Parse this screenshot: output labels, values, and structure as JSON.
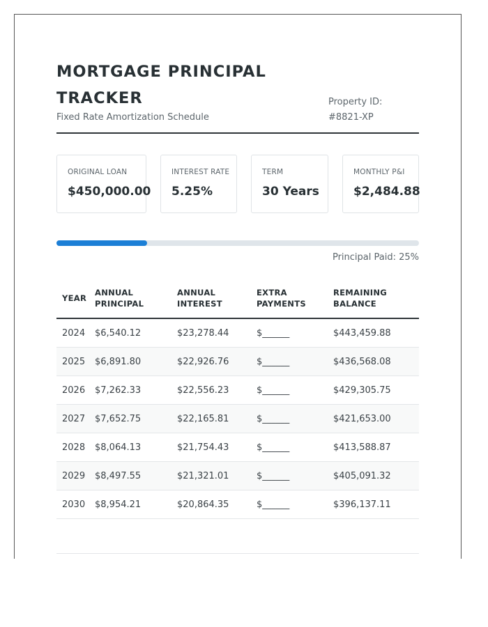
{
  "header": {
    "title": "MORTGAGE PRINCIPAL TRACKER",
    "subtitle": "Fixed Rate Amortization Schedule",
    "property_id": "Property ID: #8821-XP"
  },
  "stats": [
    {
      "label": "ORIGINAL LOAN",
      "value": "$450,000.00"
    },
    {
      "label": "INTEREST RATE",
      "value": "5.25%"
    },
    {
      "label": "TERM",
      "value": "30 Years"
    },
    {
      "label": "MONTHLY P&I",
      "value": "$2,484.88"
    }
  ],
  "progress": {
    "label": "Principal Paid: 25%",
    "fraction": 0.25
  },
  "table": {
    "headers": {
      "year": "YEAR",
      "principal_1": "ANNUAL",
      "principal_2": "PRINCIPAL",
      "interest_1": "ANNUAL",
      "interest_2": "INTEREST",
      "extra_1": "EXTRA",
      "extra_2": "PAYMENTS",
      "balance_1": "REMAINING",
      "balance_2": "BALANCE"
    },
    "rows": [
      {
        "year": "2024",
        "principal": "$6,540.12",
        "interest": "$23,278.44",
        "extra": "$______",
        "balance": "$443,459.88"
      },
      {
        "year": "2025",
        "principal": "$6,891.80",
        "interest": "$22,926.76",
        "extra": "$______",
        "balance": "$436,568.08"
      },
      {
        "year": "2026",
        "principal": "$7,262.33",
        "interest": "$22,556.23",
        "extra": "$______",
        "balance": "$429,305.75"
      },
      {
        "year": "2027",
        "principal": "$7,652.75",
        "interest": "$22,165.81",
        "extra": "$______",
        "balance": "$421,653.00"
      },
      {
        "year": "2028",
        "principal": "$8,064.13",
        "interest": "$21,754.43",
        "extra": "$______",
        "balance": "$413,588.87"
      },
      {
        "year": "2029",
        "principal": "$8,497.55",
        "interest": "$21,321.01",
        "extra": "$______",
        "balance": "$405,091.32"
      },
      {
        "year": "2030",
        "principal": "$8,954.21",
        "interest": "$20,864.35",
        "extra": "$______",
        "balance": "$396,137.11"
      }
    ]
  },
  "colors": {
    "accent": "#1c7fd6",
    "track": "#dfe5ea",
    "text": "#283034"
  }
}
